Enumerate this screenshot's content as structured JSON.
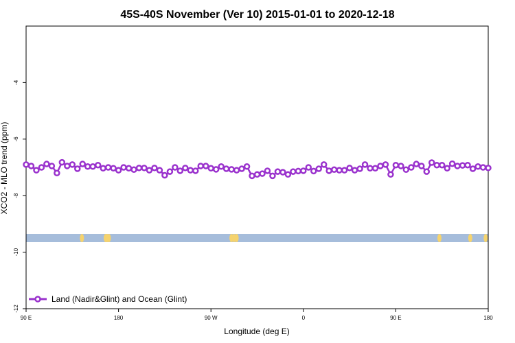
{
  "chart_data": {
    "type": "line",
    "title": "45S-40S November (Ver 10)   2015-01-01 to 2020-12-18",
    "xlabel": "Longitude (deg E)",
    "ylabel": "XCO2 - MLO trend (ppm)",
    "xlim": [
      90,
      450
    ],
    "ylim": [
      -12,
      -2
    ],
    "x_ticks": [
      {
        "value": 90,
        "label": "90 E"
      },
      {
        "value": 162,
        "label": "180"
      },
      {
        "value": 234,
        "label": "90 W"
      },
      {
        "value": 306,
        "label": "0"
      },
      {
        "value": 378,
        "label": "90 E"
      },
      {
        "value": 450,
        "label": "180"
      }
    ],
    "y_ticks": [
      -4,
      -6,
      -8,
      -10,
      -12
    ],
    "series": [
      {
        "name": "Land (Nadir&Glint) and Ocean (Glint)",
        "color": "#9a32cd",
        "x": [
          90,
          94,
          98,
          102,
          106,
          110,
          114,
          118,
          122,
          126,
          130,
          134,
          138,
          142,
          146,
          150,
          154,
          158,
          162,
          166,
          170,
          174,
          178,
          182,
          186,
          190,
          194,
          198,
          202,
          206,
          210,
          214,
          218,
          222,
          226,
          230,
          234,
          238,
          242,
          246,
          250,
          254,
          258,
          262,
          266,
          270,
          274,
          278,
          282,
          286,
          290,
          294,
          298,
          302,
          306,
          310,
          314,
          318,
          322,
          326,
          330,
          334,
          338,
          342,
          346,
          350,
          354,
          358,
          362,
          366,
          370,
          374,
          378,
          382,
          386,
          390,
          394,
          398,
          402,
          406,
          410,
          414,
          418,
          422,
          426,
          430,
          434,
          438,
          442,
          446,
          450
        ],
        "y": [
          -6.9,
          -6.95,
          -7.1,
          -7.0,
          -6.88,
          -6.95,
          -7.2,
          -6.82,
          -6.95,
          -6.9,
          -7.05,
          -6.88,
          -6.97,
          -6.97,
          -6.92,
          -7.03,
          -7.0,
          -7.03,
          -7.1,
          -7.0,
          -7.03,
          -7.08,
          -7.02,
          -7.02,
          -7.1,
          -7.02,
          -7.1,
          -7.28,
          -7.15,
          -7.0,
          -7.12,
          -7.02,
          -7.1,
          -7.12,
          -6.95,
          -6.95,
          -7.03,
          -7.07,
          -6.97,
          -7.05,
          -7.07,
          -7.1,
          -7.05,
          -6.97,
          -7.3,
          -7.25,
          -7.22,
          -7.12,
          -7.3,
          -7.15,
          -7.17,
          -7.25,
          -7.15,
          -7.13,
          -7.12,
          -7.0,
          -7.13,
          -7.05,
          -6.9,
          -7.12,
          -7.08,
          -7.1,
          -7.1,
          -7.02,
          -7.1,
          -7.05,
          -6.9,
          -7.03,
          -7.03,
          -6.95,
          -6.9,
          -7.25,
          -6.92,
          -6.95,
          -7.08,
          -7.0,
          -6.88,
          -6.95,
          -7.15,
          -6.83,
          -6.92,
          -6.92,
          -7.03,
          -6.87,
          -6.95,
          -6.93,
          -6.92,
          -7.05,
          -6.97,
          -7.0,
          -7.02
        ]
      }
    ],
    "legend": {
      "position": "bottom-left"
    },
    "grid": false,
    "land_ocean_strip": {
      "y_value": -9.5,
      "ocean_color": "#a6bddb",
      "land_color": "#f5d36e",
      "land_x": [
        133.5,
        152,
        153,
        154.5,
        250,
        252,
        254,
        412,
        436,
        448
      ]
    }
  }
}
